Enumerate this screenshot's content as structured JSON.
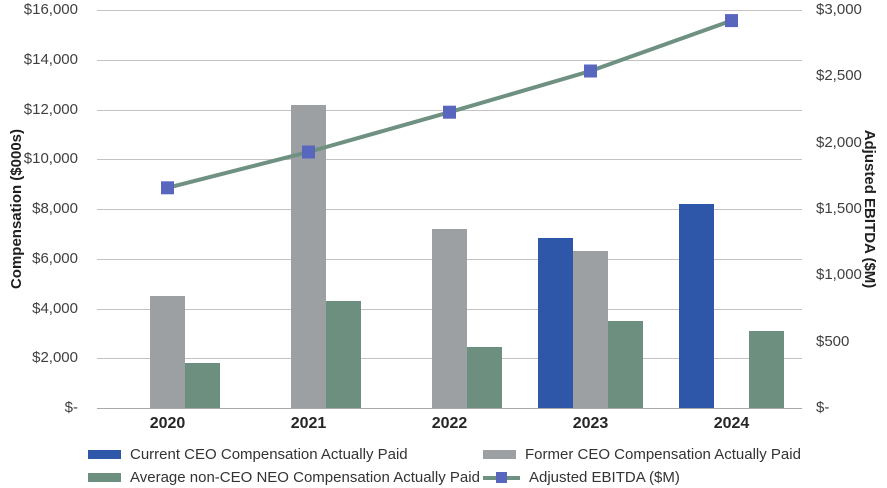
{
  "chart_data": {
    "type": "combo-bar-line",
    "title": "",
    "categories": [
      "2020",
      "2021",
      "2022",
      "2023",
      "2024"
    ],
    "bar_series": [
      {
        "key": "current-ceo",
        "name": "Current CEO Compensation Actually Paid",
        "color": "#2e57a9",
        "axis": "left",
        "values": [
          null,
          null,
          null,
          6850,
          8200
        ]
      },
      {
        "key": "former-ceo",
        "name": "Former CEO Compensation Actually Paid",
        "color": "#9da0a2",
        "axis": "left",
        "values": [
          4500,
          12200,
          7200,
          6300,
          null
        ]
      },
      {
        "key": "avg-non-ceo-neo",
        "name": "Average non-CEO NEO Compensation Actually Paid",
        "color": "#6d8f7f",
        "axis": "left",
        "values": [
          1800,
          4300,
          2450,
          3500,
          3100
        ]
      }
    ],
    "line_series": {
      "key": "adjusted-ebitda",
      "name": "Adjusted EBITDA ($M)",
      "color": "#6e9182",
      "marker_color": "#5966be",
      "axis": "right",
      "values": [
        1660,
        1930,
        2230,
        2540,
        2920
      ]
    },
    "y_left": {
      "label": "Compensation ($000s)",
      "min": 0,
      "max": 16000,
      "step": 2000,
      "ticks": [
        {
          "value": 0,
          "label": "$-"
        },
        {
          "value": 2000,
          "label": "$2,000"
        },
        {
          "value": 4000,
          "label": "$4,000"
        },
        {
          "value": 6000,
          "label": "$6,000"
        },
        {
          "value": 8000,
          "label": "$8,000"
        },
        {
          "value": 10000,
          "label": "$10,000"
        },
        {
          "value": 12000,
          "label": "$12,000"
        },
        {
          "value": 14000,
          "label": "$14,000"
        },
        {
          "value": 16000,
          "label": "$16,000"
        }
      ]
    },
    "y_right": {
      "label": "Adjusted EBITDA ($M)",
      "min": 0,
      "max": 3000,
      "step": 500,
      "ticks": [
        {
          "value": 0,
          "label": "$-"
        },
        {
          "value": 500,
          "label": "$500"
        },
        {
          "value": 1000,
          "label": "$1,000"
        },
        {
          "value": 1500,
          "label": "$1,500"
        },
        {
          "value": 2000,
          "label": "$2,000"
        },
        {
          "value": 2500,
          "label": "$2,500"
        },
        {
          "value": 3000,
          "label": "$3,000"
        }
      ]
    },
    "grid": true,
    "legend_position": "bottom",
    "legend": [
      {
        "label": "Current CEO Compensation Actually Paid",
        "swatch": "bar",
        "color": "#2e57a9",
        "row": 0,
        "col": 0
      },
      {
        "label": "Former CEO Compensation Actually Paid",
        "swatch": "bar",
        "color": "#9da0a2",
        "row": 0,
        "col": 1
      },
      {
        "label": "Average non-CEO NEO Compensation Actually Paid",
        "swatch": "bar",
        "color": "#6d8f7f",
        "row": 1,
        "col": 0
      },
      {
        "label": "Adjusted EBITDA ($M)",
        "swatch": "line",
        "color": "#6e9182",
        "marker_color": "#5966be",
        "row": 1,
        "col": 1
      }
    ]
  }
}
